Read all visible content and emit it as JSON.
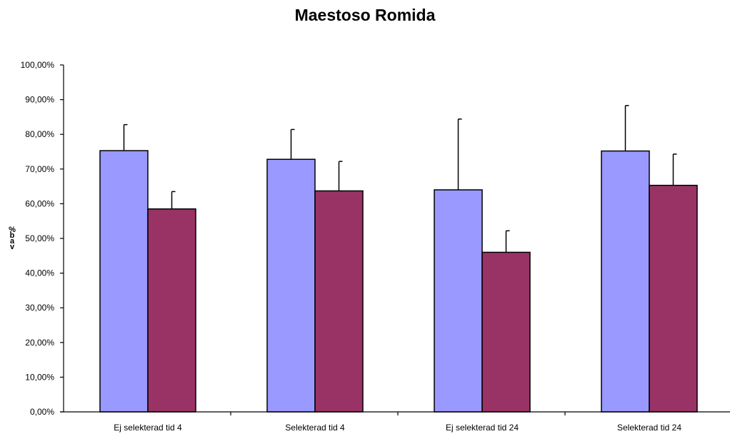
{
  "chart_data": {
    "type": "bar",
    "title": "Maestoso Romida",
    "xlabel": "",
    "ylabel": "% bav",
    "ylim": [
      0,
      100
    ],
    "y_ticks": [
      "0,00%",
      "10,00%",
      "20,00%",
      "30,00%",
      "40,00%",
      "50,00%",
      "60,00%",
      "70,00%",
      "80,00%",
      "90,00%",
      "100,00%"
    ],
    "categories": [
      "Ej selekterad tid 4",
      "Selekterad tid 4",
      "Ej selekterad tid 24",
      "Selekterad tid 24"
    ],
    "series": [
      {
        "color": "#9999ff",
        "values": [
          75.3,
          72.8,
          64.0,
          75.2
        ],
        "error": [
          7.5,
          8.6,
          20.4,
          13.1
        ]
      },
      {
        "color": "#993366",
        "values": [
          58.5,
          63.7,
          46.0,
          65.3
        ],
        "error": [
          5.0,
          8.5,
          6.2,
          9.0
        ]
      }
    ],
    "grid": false,
    "legend": "none"
  }
}
